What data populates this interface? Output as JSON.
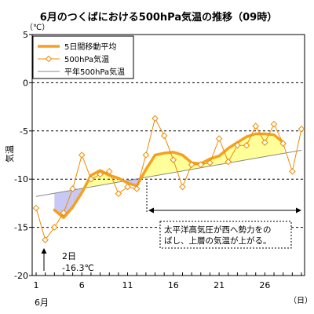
{
  "chart_data": {
    "type": "line",
    "title": "6月のつくばにおける500hPa気温の推移（09時）",
    "ylabel": "気温",
    "yunit": "（℃）",
    "xunit": "（日）",
    "month_label": "6月",
    "ylim": [
      -20,
      5
    ],
    "xlim": [
      1,
      30
    ],
    "y_ticks": [
      "5",
      "0",
      "-5",
      "-10",
      "-15",
      "-20"
    ],
    "x_ticks": [
      "1",
      "6",
      "11",
      "16",
      "21",
      "26"
    ],
    "legend": {
      "placement": "top-left",
      "entries": [
        "5日間移動平均",
        "500hPa気温",
        "平年500hPa気温"
      ]
    },
    "series": [
      {
        "name": "500hPa気温",
        "color": "#f08a00",
        "x": [
          1,
          2,
          3,
          4,
          5,
          6,
          7,
          8,
          9,
          10,
          11,
          12,
          13,
          14,
          15,
          16,
          17,
          18,
          19,
          20,
          21,
          22,
          23,
          24,
          25,
          26,
          27,
          28,
          29,
          30
        ],
        "values": [
          -13.0,
          -16.3,
          -15.0,
          -13.5,
          -11.0,
          -7.5,
          -10.0,
          -9.5,
          -9.2,
          -11.5,
          -10.8,
          -11.0,
          -7.5,
          -3.7,
          -5.5,
          -8.0,
          -10.8,
          -8.5,
          -8.5,
          -8.3,
          -5.8,
          -8.2,
          -6.5,
          -6.5,
          -4.5,
          -6.2,
          -4.3,
          -6.3,
          -9.2,
          -4.8
        ]
      },
      {
        "name": "5日間移動平均",
        "color": "#f5a020",
        "x": [
          3,
          4,
          5,
          6,
          7,
          8,
          9,
          10,
          11,
          12,
          13,
          14,
          15,
          16,
          17,
          18,
          19,
          20,
          21,
          22,
          23,
          24,
          25,
          26,
          27,
          28
        ],
        "values": [
          -13.2,
          -14.0,
          -12.9,
          -11.4,
          -9.6,
          -9.1,
          -9.6,
          -9.9,
          -10.4,
          -10.7,
          -9.0,
          -7.5,
          -7.3,
          -7.2,
          -7.5,
          -8.3,
          -8.4,
          -7.9,
          -7.6,
          -6.8,
          -6.2,
          -5.6,
          -5.3,
          -5.3,
          -5.4,
          -6.2
        ]
      },
      {
        "name": "平年500hPa気温",
        "color": "#888888",
        "x": [
          1,
          30
        ],
        "values": [
          -11.8,
          -7.0
        ]
      }
    ],
    "fill_colors": {
      "above_normal": "#ffff99",
      "below_normal": "#c8c8f5"
    },
    "annotations": [
      {
        "text_lines": [
          "2日",
          "-16.3℃"
        ],
        "x": 2,
        "y": -16.3
      },
      {
        "text_lines": [
          "太平洋高気圧が西へ勢力をの",
          "ばし、上層の気温が上がる。"
        ],
        "x_range": [
          13,
          30
        ]
      }
    ]
  }
}
